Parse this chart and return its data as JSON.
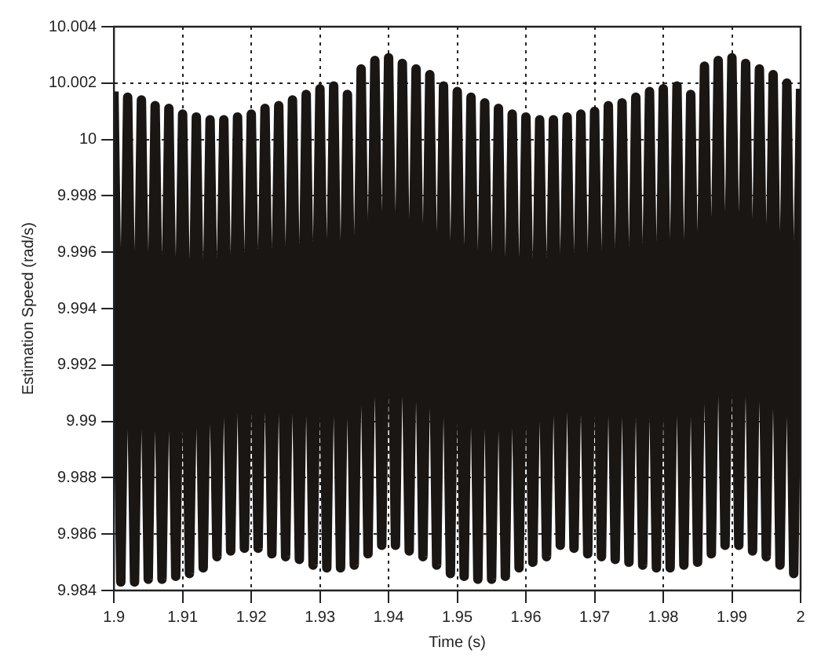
{
  "chart_data": {
    "type": "line",
    "xlabel": "Time (s)",
    "ylabel": "Estimation Speed (rad/s)",
    "x": [
      1.9,
      1.901,
      1.902,
      1.903,
      1.904,
      1.905,
      1.906,
      1.907,
      1.908,
      1.909,
      1.91,
      1.911,
      1.912,
      1.913,
      1.914,
      1.915,
      1.916,
      1.917,
      1.918,
      1.919,
      1.92,
      1.921,
      1.922,
      1.923,
      1.924,
      1.925,
      1.926,
      1.927,
      1.928,
      1.929,
      1.93,
      1.931,
      1.932,
      1.933,
      1.934,
      1.935,
      1.936,
      1.937,
      1.938,
      1.939,
      1.94,
      1.941,
      1.942,
      1.943,
      1.944,
      1.945,
      1.946,
      1.947,
      1.948,
      1.949,
      1.95,
      1.951,
      1.952,
      1.953,
      1.954,
      1.955,
      1.956,
      1.957,
      1.958,
      1.959,
      1.96,
      1.961,
      1.962,
      1.963,
      1.964,
      1.965,
      1.966,
      1.967,
      1.968,
      1.969,
      1.97,
      1.971,
      1.972,
      1.973,
      1.974,
      1.975,
      1.976,
      1.977,
      1.978,
      1.979,
      1.98,
      1.981,
      1.982,
      1.983,
      1.984,
      1.985,
      1.986,
      1.987,
      1.988,
      1.989,
      1.99,
      1.991,
      1.992,
      1.993,
      1.994,
      1.995,
      1.996,
      1.997,
      1.998,
      1.999,
      2
    ],
    "series": [
      {
        "color": "#1a1614",
        "values": [
          10.0017,
          9.9843,
          10.0015,
          9.9843,
          10.0014,
          9.9844,
          10.0012,
          9.9844,
          10.0011,
          9.9845,
          10.0009,
          9.9846,
          10.0008,
          9.9848,
          10.0007,
          9.9852,
          10.0007,
          9.9854,
          10.0008,
          9.9855,
          10.0009,
          9.9855,
          10.0011,
          9.9853,
          10.0012,
          9.9852,
          10.0014,
          9.9851,
          10.0016,
          9.9849,
          10.0018,
          9.9848,
          10.0019,
          9.9848,
          10.0016,
          9.9849,
          10.0025,
          9.9853,
          10.0028,
          9.9856,
          10.0029,
          9.9856,
          10.0027,
          9.9854,
          10.0025,
          9.9852,
          10.0023,
          9.9849,
          10.0019,
          9.9846,
          10.0017,
          9.9845,
          10.0015,
          9.9844,
          10.0013,
          9.9844,
          10.0011,
          9.9845,
          10.0009,
          9.9848,
          10.0008,
          9.985,
          10.0007,
          9.9852,
          10.0007,
          9.9856,
          10.0008,
          9.9855,
          10.0009,
          9.9853,
          10.001,
          9.9852,
          10.0012,
          9.9851,
          10.0013,
          9.985,
          10.0015,
          9.9849,
          10.0017,
          9.9848,
          10.0018,
          9.9848,
          10.0019,
          9.9849,
          10.0016,
          9.985,
          10.0026,
          9.9853,
          10.0028,
          9.9856,
          10.0029,
          9.9856,
          10.0027,
          9.9854,
          10.0025,
          9.9852,
          10.0023,
          9.9849,
          10.002,
          9.9846,
          10.0018
        ]
      }
    ],
    "xlim": [
      1.9,
      2
    ],
    "xticks": [
      1.9,
      1.91,
      1.92,
      1.93,
      1.94,
      1.95,
      1.96,
      1.97,
      1.98,
      1.99,
      2
    ],
    "ylim": [
      9.984,
      10.004
    ],
    "yticks": [
      9.984,
      9.986,
      9.988,
      9.99,
      9.992,
      9.994,
      9.996,
      9.998,
      10,
      10.002,
      10.004
    ],
    "grid": true,
    "legend": false,
    "marker": "none",
    "line_style": "solid"
  }
}
